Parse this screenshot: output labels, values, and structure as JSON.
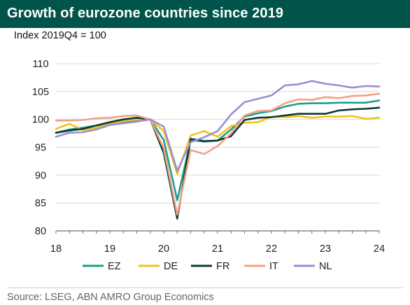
{
  "title": "Growth of eurozone countries since 2019",
  "subtitle": "Index 2019Q4 = 100",
  "source": "Source: LSEG, ABN AMRO Group Economics",
  "chart_data": {
    "type": "line",
    "x": [
      2018.0,
      2018.25,
      2018.5,
      2018.75,
      2019.0,
      2019.25,
      2019.5,
      2019.75,
      2020.0,
      2020.25,
      2020.5,
      2020.75,
      2021.0,
      2021.25,
      2021.5,
      2021.75,
      2022.0,
      2022.25,
      2022.5,
      2022.75,
      2023.0,
      2023.25,
      2023.5,
      2023.75,
      2024.0
    ],
    "xlim": [
      2018,
      2024
    ],
    "xticks": [
      "18",
      "19",
      "20",
      "21",
      "22",
      "23",
      "24"
    ],
    "ylim": [
      80,
      110
    ],
    "yticks": [
      80,
      85,
      90,
      95,
      100,
      105,
      110
    ],
    "grid": "horizontal",
    "legend_position": "bottom",
    "series": [
      {
        "name": "EZ",
        "color": "#1a9e8f",
        "values": [
          97.6,
          98.2,
          98.5,
          98.9,
          99.4,
          99.6,
          99.9,
          100.0,
          96.3,
          85.5,
          96.3,
          96.0,
          96.2,
          98.2,
          100.5,
          101.1,
          101.5,
          102.3,
          102.8,
          102.9,
          102.9,
          103.0,
          103.0,
          103.0,
          103.4
        ]
      },
      {
        "name": "DE",
        "color": "#f0c419",
        "values": [
          98.3,
          99.2,
          98.1,
          98.5,
          99.3,
          99.7,
          100.0,
          100.0,
          97.9,
          90.2,
          97.1,
          97.9,
          96.9,
          98.8,
          99.4,
          99.5,
          100.5,
          100.4,
          100.6,
          100.3,
          100.5,
          100.5,
          100.6,
          100.1,
          100.3
        ]
      },
      {
        "name": "FR",
        "color": "#0c3b33",
        "values": [
          97.6,
          98.0,
          98.3,
          98.9,
          99.5,
          100.0,
          100.3,
          100.0,
          94.0,
          82.2,
          96.5,
          96.1,
          96.2,
          97.0,
          99.9,
          100.3,
          100.4,
          100.7,
          101.0,
          101.0,
          101.0,
          101.6,
          101.8,
          101.9,
          102.1
        ]
      },
      {
        "name": "IT",
        "color": "#f4a088",
        "values": [
          99.8,
          99.8,
          99.9,
          100.2,
          100.3,
          100.6,
          100.7,
          100.0,
          94.8,
          82.9,
          94.5,
          93.8,
          95.2,
          97.5,
          100.7,
          101.5,
          101.6,
          102.9,
          103.6,
          103.5,
          104.0,
          103.8,
          104.2,
          104.3,
          104.6
        ]
      },
      {
        "name": "NL",
        "color": "#9c8fd0",
        "values": [
          96.9,
          97.6,
          97.7,
          98.2,
          99.0,
          99.3,
          99.6,
          100.0,
          98.7,
          90.8,
          95.9,
          96.8,
          97.9,
          100.9,
          103.1,
          103.7,
          104.3,
          106.1,
          106.3,
          106.9,
          106.4,
          106.1,
          105.7,
          106.0,
          105.9
        ]
      }
    ]
  }
}
